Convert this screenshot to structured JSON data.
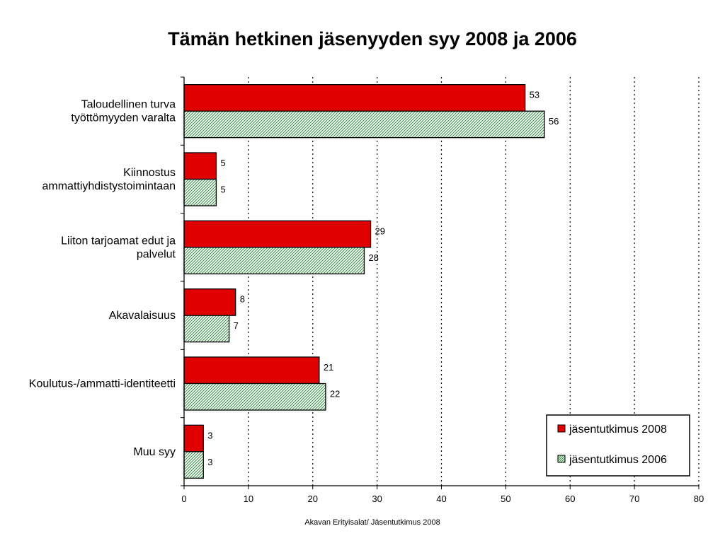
{
  "chart_data": {
    "type": "bar",
    "orientation": "horizontal",
    "title": "Tämän hetkinen jäsenyyden syy 2008 ja 2006",
    "categories": [
      [
        "Taloudellinen turva",
        "työttömyyden varalta"
      ],
      [
        "Kiinnostus",
        "ammattiyhdistystoimintaan"
      ],
      [
        "Liiton tarjoamat edut ja",
        "palvelut"
      ],
      [
        "Akavalaisuus"
      ],
      [
        "Koulutus-/ammatti-identiteetti"
      ],
      [
        "Muu syy"
      ]
    ],
    "series": [
      {
        "name": "jäsentutkimus 2008",
        "values": [
          53,
          5,
          29,
          8,
          21,
          3
        ],
        "color": "#e00000",
        "pattern": "solid"
      },
      {
        "name": "jäsentutkimus 2006",
        "values": [
          56,
          5,
          28,
          7,
          22,
          3
        ],
        "color": "#2e8b3e",
        "pattern": "diagonal-hatch"
      }
    ],
    "xlim": [
      0,
      80
    ],
    "xticks": [
      "0",
      "10",
      "20",
      "30",
      "40",
      "50",
      "60",
      "70",
      "80"
    ],
    "grid": "vertical-dotted",
    "legend_position": "bottom-right",
    "data_labels": true
  },
  "footer": "Akavan Erityisalat/ Jäsentutkimus 2008"
}
